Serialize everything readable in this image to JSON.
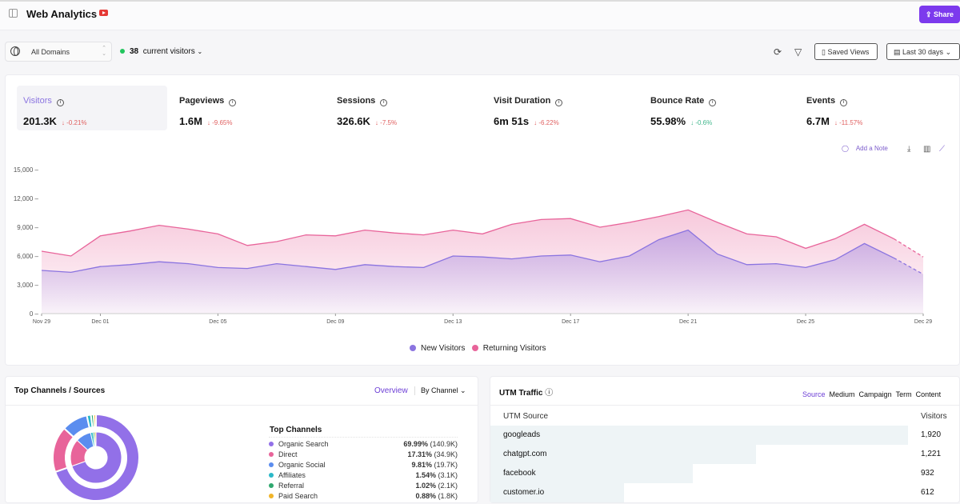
{
  "header": {
    "title": "Web Analytics",
    "share_label": "Share",
    "icons": [
      "sidebar-toggle-icon",
      "youtube-icon",
      "upload-icon"
    ]
  },
  "toolbar": {
    "domain": "All Domains",
    "current_visitors_count": "38",
    "current_visitors_label": "current visitors",
    "saved_views": "Saved Views",
    "date_range": "Last 30 days"
  },
  "kpis": [
    {
      "label": "Visitors",
      "value": "201.3K",
      "delta": "-0.21%",
      "trend": "negative",
      "selected": true
    },
    {
      "label": "Pageviews",
      "value": "1.6M",
      "delta": "-9.65%",
      "trend": "negative"
    },
    {
      "label": "Sessions",
      "value": "326.6K",
      "delta": "-7.5%",
      "trend": "negative"
    },
    {
      "label": "Visit Duration",
      "value": "6m 51s",
      "delta": "-6.22%",
      "trend": "negative"
    },
    {
      "label": "Bounce Rate",
      "value": "55.98%",
      "delta": "-0.6%",
      "trend": "positive"
    },
    {
      "label": "Events",
      "value": "6.7M",
      "delta": "-11.57%",
      "trend": "negative"
    }
  ],
  "chart_tools": {
    "add_note": "Add a Note"
  },
  "chart_data": {
    "type": "area",
    "x_tick_labels": [
      "Nov 29",
      "Dec 01",
      "Dec 05",
      "Dec 09",
      "Dec 13",
      "Dec 17",
      "Dec 21",
      "Dec 25",
      "Dec 29"
    ],
    "y_tick_labels": [
      "0",
      "3,000",
      "6,000",
      "9,000",
      "12,000",
      "15,000"
    ],
    "ylim": [
      0,
      15000
    ],
    "x": [
      "Nov 29",
      "Nov 30",
      "Dec 01",
      "Dec 02",
      "Dec 03",
      "Dec 04",
      "Dec 05",
      "Dec 06",
      "Dec 07",
      "Dec 08",
      "Dec 09",
      "Dec 10",
      "Dec 11",
      "Dec 12",
      "Dec 13",
      "Dec 14",
      "Dec 15",
      "Dec 16",
      "Dec 17",
      "Dec 18",
      "Dec 19",
      "Dec 20",
      "Dec 21",
      "Dec 22",
      "Dec 23",
      "Dec 24",
      "Dec 25",
      "Dec 26",
      "Dec 27",
      "Dec 28",
      "Dec 29"
    ],
    "series": [
      {
        "name": "Returning Visitors",
        "color": "#e8649a",
        "values": [
          6500,
          6000,
          8100,
          8600,
          9200,
          8800,
          8300,
          7100,
          7500,
          8200,
          8100,
          8700,
          8400,
          8200,
          8700,
          8300,
          9300,
          9800,
          9900,
          9000,
          9500,
          10100,
          10800,
          9500,
          8300,
          8000,
          6800,
          7800,
          9300,
          7800,
          5900
        ]
      },
      {
        "name": "New Visitors",
        "color": "#8b74e0",
        "values": [
          4500,
          4300,
          4900,
          5100,
          5400,
          5200,
          4800,
          4700,
          5200,
          4900,
          4600,
          5100,
          4900,
          4800,
          6000,
          5900,
          5700,
          6000,
          6100,
          5400,
          6000,
          7700,
          8700,
          6200,
          5100,
          5200,
          4800,
          5600,
          7300,
          5800,
          4100
        ]
      }
    ],
    "legend": "bottom",
    "grid": false,
    "last_segment_dashed": true
  },
  "channels": {
    "title": "Top Channels / Sources",
    "tab_active": "Overview",
    "dropdown": "By Channel",
    "list_title": "Top Channels",
    "items": [
      {
        "name": "Organic Search",
        "pct": "69.99%",
        "count": "(140.9K)",
        "color": "#9270e8"
      },
      {
        "name": "Direct",
        "pct": "17.31%",
        "count": "(34.9K)",
        "color": "#e8649a"
      },
      {
        "name": "Organic Social",
        "pct": "9.81%",
        "count": "(19.7K)",
        "color": "#5b8def"
      },
      {
        "name": "Affiliates",
        "pct": "1.54%",
        "count": "(3.1K)",
        "color": "#2bb8c8"
      },
      {
        "name": "Referral",
        "pct": "1.02%",
        "count": "(2.1K)",
        "color": "#2fa86f"
      },
      {
        "name": "Paid Search",
        "pct": "0.88%",
        "count": "(1.8K)",
        "color": "#f0b429"
      }
    ]
  },
  "utm": {
    "title": "UTM Traffic",
    "tabs": [
      "Source",
      "Medium",
      "Campaign",
      "Term",
      "Content"
    ],
    "active_tab": "Source",
    "col_source": "UTM Source",
    "col_visitors": "Visitors",
    "rows": [
      {
        "source": "googleads",
        "visitors": "1,920",
        "share": 1.0
      },
      {
        "source": "chatgpt.com",
        "visitors": "1,221",
        "share": 0.636
      },
      {
        "source": "facebook",
        "visitors": "932",
        "share": 0.485
      },
      {
        "source": "customer.io",
        "visitors": "612",
        "share": 0.319
      }
    ]
  }
}
